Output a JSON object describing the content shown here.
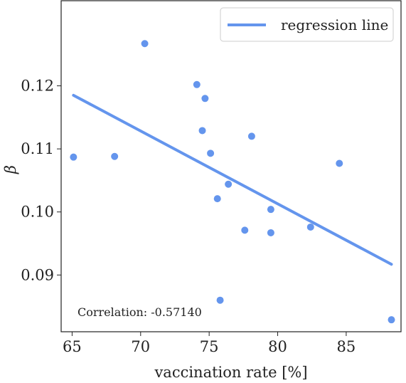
{
  "chart_data": {
    "type": "scatter",
    "xlabel": "vaccination rate [%]",
    "ylabel": "β",
    "xlim": [
      64.2,
      89.0
    ],
    "ylim": [
      0.081,
      0.1335
    ],
    "xticks": [
      65,
      70,
      75,
      80,
      85
    ],
    "xtick_labels": [
      "65",
      "70",
      "75",
      "80",
      "85"
    ],
    "yticks": [
      0.09,
      0.1,
      0.11,
      0.12
    ],
    "ytick_labels": [
      "0.09",
      "0.10",
      "0.11",
      "0.12"
    ],
    "grid": false,
    "legend_position": "top-right",
    "legend": [
      "regression line"
    ],
    "color": "#6495ED",
    "annotation": "Correlation: -0.57140",
    "points": [
      {
        "x": 65.1,
        "y": 0.1087
      },
      {
        "x": 68.1,
        "y": 0.1088
      },
      {
        "x": 70.3,
        "y": 0.1267
      },
      {
        "x": 74.1,
        "y": 0.1202
      },
      {
        "x": 74.5,
        "y": 0.1129
      },
      {
        "x": 74.7,
        "y": 0.118
      },
      {
        "x": 75.1,
        "y": 0.1093
      },
      {
        "x": 75.6,
        "y": 0.1021
      },
      {
        "x": 75.8,
        "y": 0.086
      },
      {
        "x": 76.4,
        "y": 0.1044
      },
      {
        "x": 77.6,
        "y": 0.0971
      },
      {
        "x": 78.1,
        "y": 0.112
      },
      {
        "x": 79.5,
        "y": 0.1004
      },
      {
        "x": 79.5,
        "y": 0.0967
      },
      {
        "x": 82.4,
        "y": 0.0976
      },
      {
        "x": 84.5,
        "y": 0.1077
      },
      {
        "x": 88.3,
        "y": 0.0829
      }
    ],
    "regression_line": {
      "x": [
        65.1,
        88.3
      ],
      "y": [
        0.1185,
        0.0917
      ]
    }
  }
}
